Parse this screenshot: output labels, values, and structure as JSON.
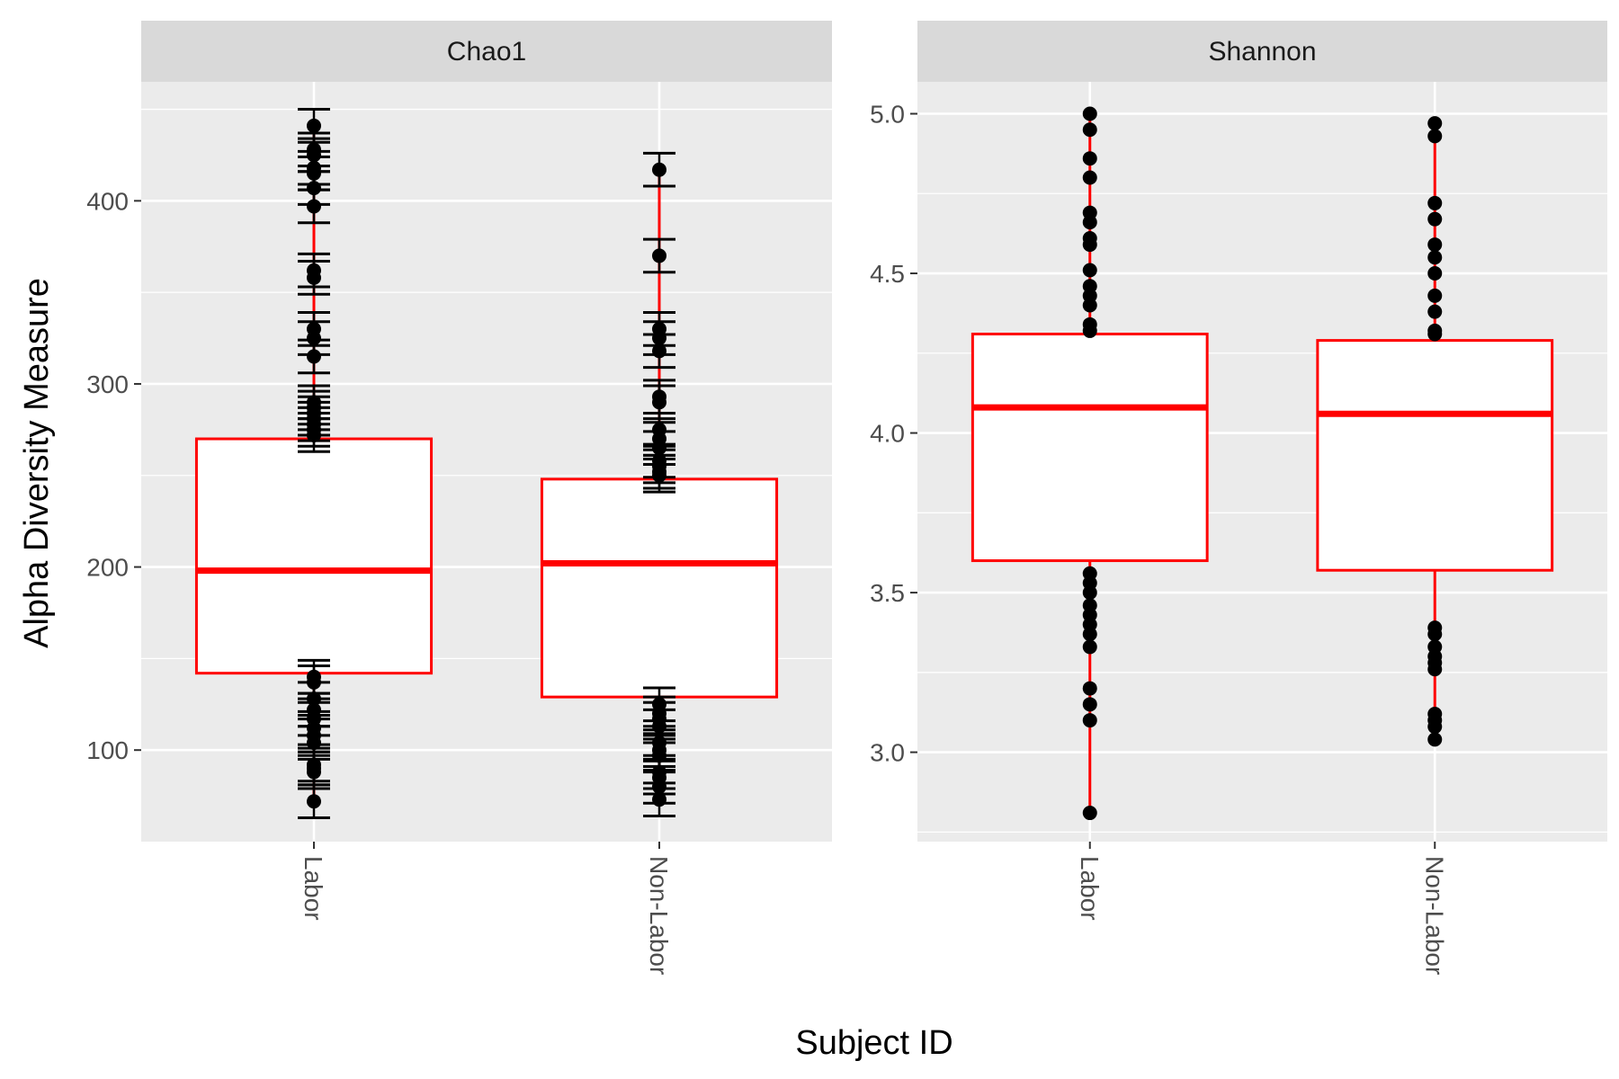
{
  "chart_data": {
    "type": "boxplot",
    "xlabel": "Subject ID",
    "ylabel": "Alpha Diversity Measure",
    "categories": [
      "Labor",
      "Non-Labor"
    ],
    "box_color": "#ff0000",
    "point_color": "#000000",
    "panel_background": "#ebebeb",
    "strip_background": "#d9d9d9",
    "grid": true,
    "panels": [
      {
        "title": "Chao1",
        "ylim": [
          50,
          465
        ],
        "yticks": [
          100,
          200,
          300,
          400
        ],
        "error_bars": true,
        "groups": [
          {
            "name": "Labor",
            "q1": 142,
            "median": 198,
            "q3": 270,
            "whisker_low": 72,
            "whisker_high": 441,
            "points": [
              441,
              428,
              425,
              418,
              415,
              407,
              397,
              362,
              358,
              330,
              325,
              315,
              290,
              287,
              284,
              281,
              278,
              275,
              272,
              140,
              137,
              128,
              122,
              117,
              112,
              108,
              104,
              92,
              90,
              88,
              72
            ],
            "point_err": 9
          },
          {
            "name": "Non-Labor",
            "q1": 129,
            "median": 202,
            "q3": 248,
            "whisker_low": 73,
            "whisker_high": 417,
            "points": [
              417,
              370,
              330,
              325,
              318,
              293,
              290,
              275,
              270,
              265,
              258,
              255,
              252,
              250,
              125,
              120,
              117,
              113,
              104,
              100,
              97,
              88,
              85,
              80,
              73
            ],
            "point_err": 9
          }
        ]
      },
      {
        "title": "Shannon",
        "ylim": [
          2.72,
          5.1
        ],
        "yticks": [
          3.0,
          3.5,
          4.0,
          4.5,
          5.0
        ],
        "error_bars": false,
        "groups": [
          {
            "name": "Labor",
            "q1": 3.6,
            "median": 4.08,
            "q3": 4.31,
            "whisker_low": 2.81,
            "whisker_high": 5.0,
            "points": [
              5.0,
              4.95,
              4.86,
              4.8,
              4.69,
              4.66,
              4.61,
              4.59,
              4.51,
              4.46,
              4.43,
              4.4,
              4.34,
              4.32,
              3.56,
              3.53,
              3.5,
              3.46,
              3.43,
              3.4,
              3.37,
              3.33,
              3.2,
              3.15,
              3.1,
              2.81
            ]
          },
          {
            "name": "Non-Labor",
            "q1": 3.57,
            "median": 4.06,
            "q3": 4.29,
            "whisker_low": 3.04,
            "whisker_high": 4.97,
            "points": [
              4.97,
              4.93,
              4.72,
              4.67,
              4.59,
              4.55,
              4.5,
              4.43,
              4.38,
              4.32,
              4.31,
              3.39,
              3.37,
              3.33,
              3.3,
              3.28,
              3.26,
              3.12,
              3.1,
              3.08,
              3.04
            ]
          }
        ]
      }
    ]
  }
}
